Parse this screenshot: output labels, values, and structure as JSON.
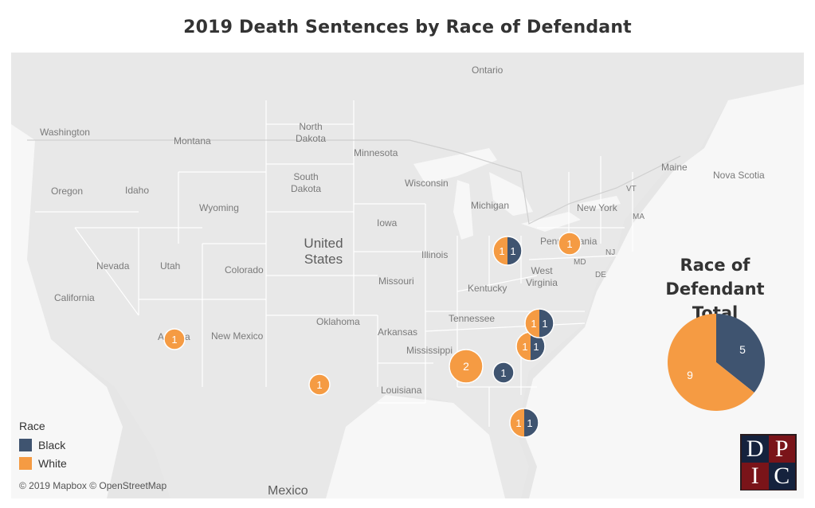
{
  "title": "2019 Death Sentences by Race of Defendant",
  "colors": {
    "black": "#3f5470",
    "white": "#f59b43",
    "map_bg": "#e6e6e6",
    "state_line": "#ffffff",
    "marker_text": "#ffffff"
  },
  "map": {
    "country_labels": {
      "us": "United States",
      "mexico": "Mexico",
      "ontario": "Ontario",
      "nova_scotia": "Nova Scotia"
    },
    "state_labels": {
      "washington": "Washington",
      "oregon": "Oregon",
      "california": "California",
      "nevada": "Nevada",
      "idaho": "Idaho",
      "montana": "Montana",
      "wyoming": "Wyoming",
      "utah": "Utah",
      "colorado": "Colorado",
      "arizona": "Arizona",
      "new_mexico": "New Mexico",
      "north_dakota": "North Dakota",
      "south_dakota": "South Dakota",
      "oklahoma": "Oklahoma",
      "minnesota": "Minnesota",
      "iowa": "Iowa",
      "missouri": "Missouri",
      "arkansas": "Arkansas",
      "louisiana": "Louisiana",
      "mississippi": "Mississippi",
      "wisconsin": "Wisconsin",
      "illinois": "Illinois",
      "michigan": "Michigan",
      "kentucky": "Kentucky",
      "tennessee": "Tennessee",
      "west_virginia": "West Virginia",
      "new_york": "New York",
      "pennsylvania": "Pennsylvania",
      "maine": "Maine",
      "vermont": "VT",
      "massachusetts": "MA",
      "new_jersey": "NJ",
      "maryland": "MD",
      "delaware": "DE"
    },
    "markers": [
      {
        "name": "Arizona",
        "white": 1,
        "black": 0
      },
      {
        "name": "Texas",
        "white": 1,
        "black": 0
      },
      {
        "name": "Alabama",
        "white": 2,
        "black": 0
      },
      {
        "name": "Georgia",
        "white": 0,
        "black": 1
      },
      {
        "name": "Florida",
        "white": 1,
        "black": 1
      },
      {
        "name": "South Carolina",
        "white": 1,
        "black": 1
      },
      {
        "name": "North Carolina",
        "white": 1,
        "black": 1
      },
      {
        "name": "Ohio",
        "white": 1,
        "black": 1
      },
      {
        "name": "Pennsylvania",
        "white": 1,
        "black": 0
      }
    ]
  },
  "summary": {
    "title_line1": "Race of Defendant",
    "title_line2": "Total",
    "black_total": 5,
    "white_total": 9
  },
  "legend": {
    "title": "Race",
    "items": [
      {
        "label": "Black",
        "color_key": "black"
      },
      {
        "label": "White",
        "color_key": "white"
      }
    ]
  },
  "attribution": "© 2019 Mapbox © OpenStreetMap",
  "logo": {
    "letters": [
      "D",
      "P",
      "I",
      "C"
    ]
  }
}
